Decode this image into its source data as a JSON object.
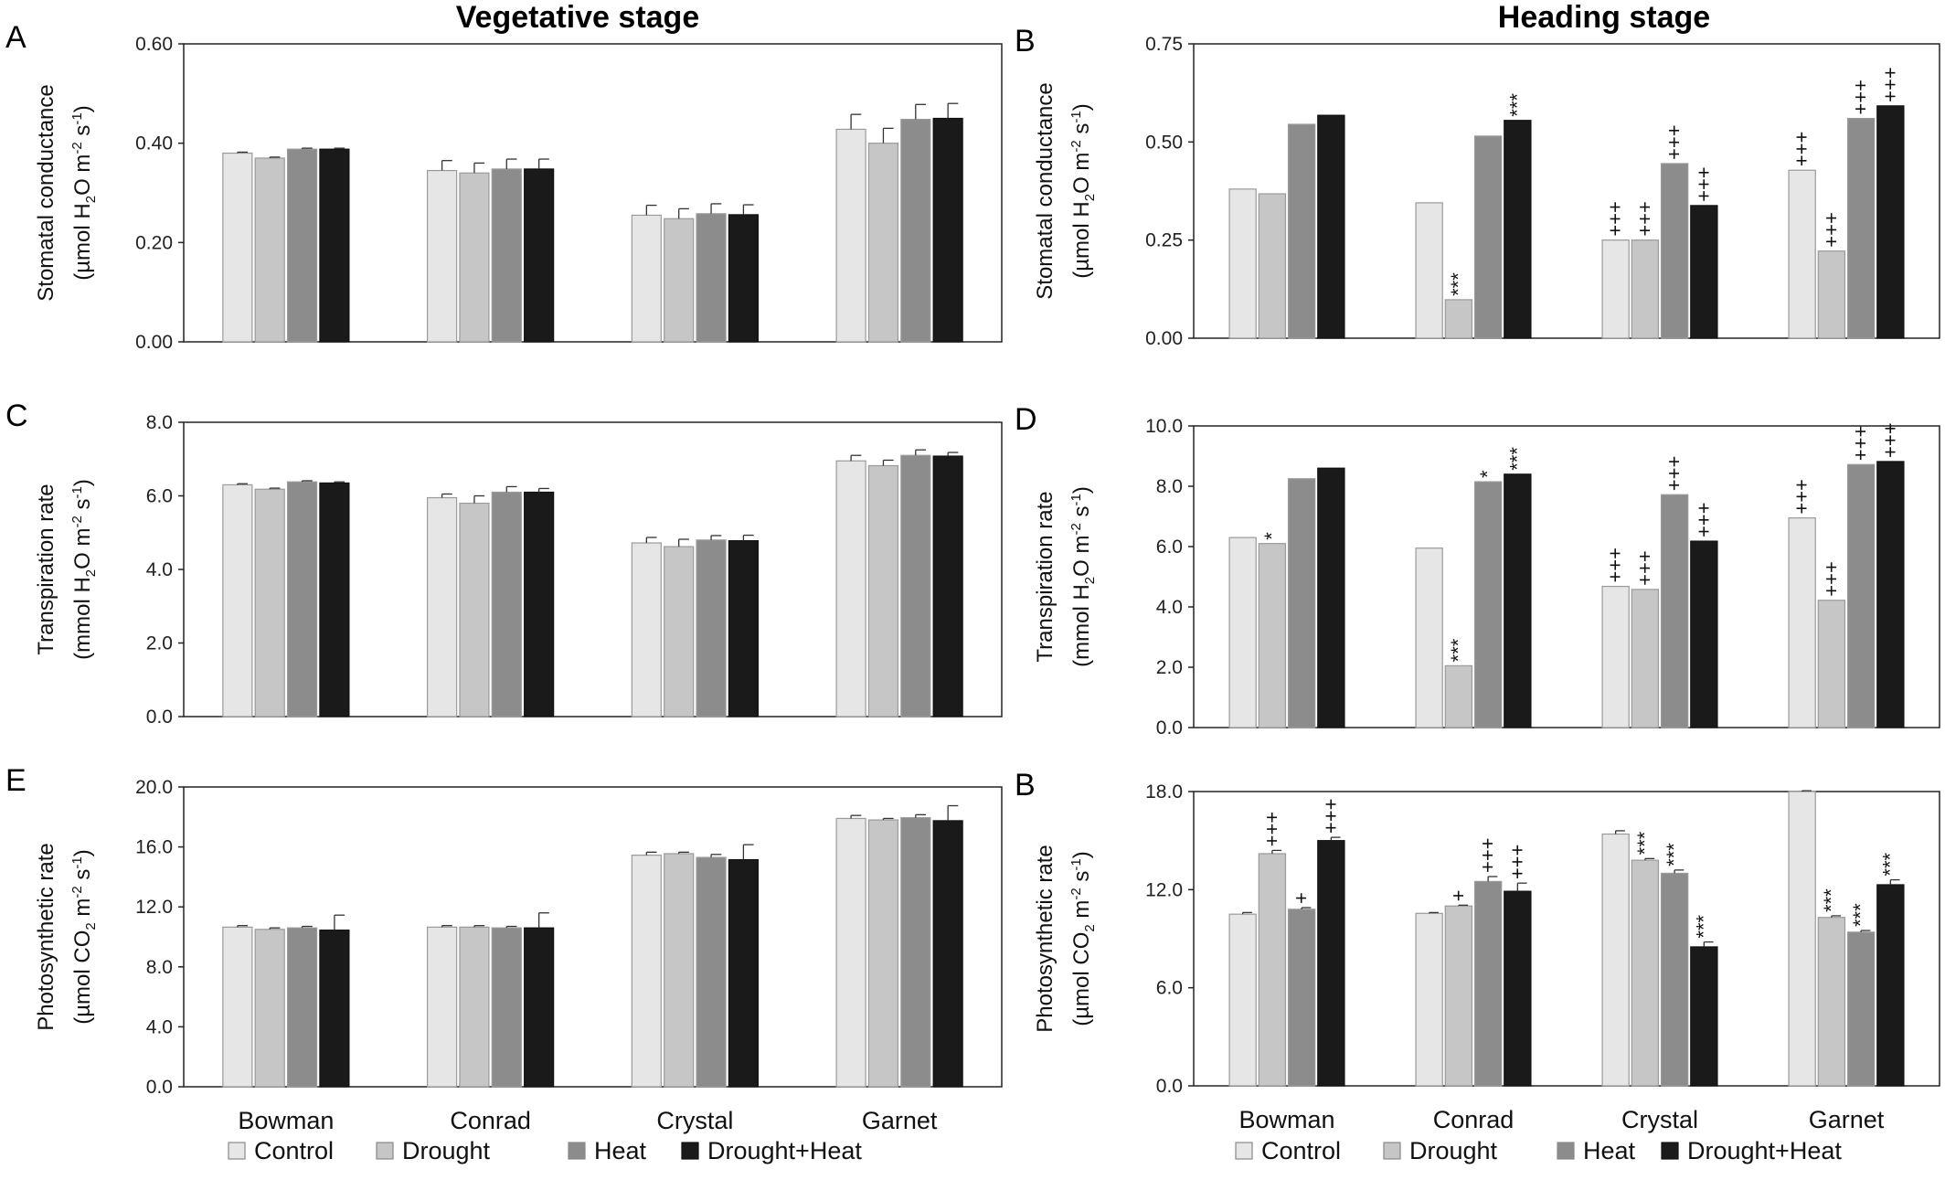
{
  "titles": {
    "left": "Vegetative stage",
    "right": "Heading stage"
  },
  "legend": [
    {
      "label": "Control",
      "color": "#e6e6e6"
    },
    {
      "label": "Drought",
      "color": "#c6c6c6"
    },
    {
      "label": "Heat",
      "color": "#8c8c8c"
    },
    {
      "label": "Drought+Heat",
      "color": "#1a1a1a"
    }
  ],
  "chart_data": [
    {
      "panel": "A",
      "type": "bar",
      "categories": [
        "Bowman",
        "Conrad",
        "Crystal",
        "Garnet"
      ],
      "ylabel_line1": "Stomatal conductance",
      "ylabel_line2": [
        "(µmol H",
        "2",
        "O m",
        "-2",
        " s",
        "-1",
        ")"
      ],
      "ylim": [
        0,
        0.6
      ],
      "yticks": [
        "0.00",
        "0.20",
        "0.40",
        "0.60"
      ],
      "series": [
        {
          "name": "Control",
          "values": [
            0.38,
            0.345,
            0.255,
            0.428
          ],
          "err": [
            0.002,
            0.02,
            0.02,
            0.03
          ]
        },
        {
          "name": "Drought",
          "values": [
            0.37,
            0.34,
            0.248,
            0.4
          ],
          "err": [
            0.002,
            0.02,
            0.02,
            0.03
          ]
        },
        {
          "name": "Heat",
          "values": [
            0.388,
            0.348,
            0.258,
            0.448
          ],
          "err": [
            0.002,
            0.02,
            0.02,
            0.03
          ]
        },
        {
          "name": "Drought+Heat",
          "values": [
            0.388,
            0.348,
            0.256,
            0.45
          ],
          "err": [
            0.002,
            0.02,
            0.02,
            0.03
          ]
        }
      ],
      "sig": [
        [
          "",
          "",
          "",
          ""
        ],
        [
          "",
          "",
          "",
          ""
        ],
        [
          "",
          "",
          "",
          ""
        ],
        [
          "",
          "",
          "",
          ""
        ]
      ]
    },
    {
      "panel": "B",
      "type": "bar",
      "categories": [
        "Bowman",
        "Conrad",
        "Crystal",
        "Garnet"
      ],
      "ylabel_line1": "Stomatal conductance",
      "ylabel_line2": [
        "(µmol H",
        "2",
        "O m",
        "-2",
        " s",
        "-1",
        ")"
      ],
      "ylim": [
        0,
        0.75
      ],
      "yticks": [
        "0.00",
        "0.25",
        "0.50",
        "0.75"
      ],
      "series": [
        {
          "name": "Control",
          "values": [
            0.38,
            0.345,
            0.25,
            0.428
          ],
          "err": [
            0,
            0,
            0,
            0
          ]
        },
        {
          "name": "Drought",
          "values": [
            0.368,
            0.098,
            0.25,
            0.222
          ],
          "err": [
            0,
            0,
            0,
            0
          ]
        },
        {
          "name": "Heat",
          "values": [
            0.545,
            0.515,
            0.445,
            0.56
          ],
          "err": [
            0,
            0,
            0,
            0
          ]
        },
        {
          "name": "Drought+Heat",
          "values": [
            0.568,
            0.555,
            0.338,
            0.592
          ],
          "err": [
            0,
            0,
            0,
            0
          ]
        }
      ],
      "sig": [
        [
          "",
          "",
          "+++",
          "+++"
        ],
        [
          "",
          "***",
          "+++",
          "+++"
        ],
        [
          "",
          "",
          "+++",
          "+++"
        ],
        [
          "",
          "***",
          "+++",
          "+++"
        ]
      ]
    },
    {
      "panel": "C",
      "type": "bar",
      "categories": [
        "Bowman",
        "Conrad",
        "Crystal",
        "Garnet"
      ],
      "ylabel_line1": "Transpiration rate",
      "ylabel_line2": [
        "(mmol H",
        "2",
        "O m",
        "-2",
        " s",
        "-1",
        ")"
      ],
      "ylim": [
        0,
        8
      ],
      "yticks": [
        "0.0",
        "2.0",
        "4.0",
        "6.0",
        "8.0"
      ],
      "series": [
        {
          "name": "Control",
          "values": [
            6.3,
            5.95,
            4.72,
            6.95
          ],
          "err": [
            0.03,
            0.1,
            0.15,
            0.15
          ]
        },
        {
          "name": "Drought",
          "values": [
            6.18,
            5.8,
            4.62,
            6.82
          ],
          "err": [
            0.03,
            0.2,
            0.2,
            0.15
          ]
        },
        {
          "name": "Heat",
          "values": [
            6.38,
            6.1,
            4.8,
            7.1
          ],
          "err": [
            0.03,
            0.15,
            0.12,
            0.15
          ]
        },
        {
          "name": "Drought+Heat",
          "values": [
            6.35,
            6.1,
            4.78,
            7.08
          ],
          "err": [
            0.03,
            0.1,
            0.15,
            0.1
          ]
        }
      ],
      "sig": [
        [
          "",
          "",
          "",
          ""
        ],
        [
          "",
          "",
          "",
          ""
        ],
        [
          "",
          "",
          "",
          ""
        ],
        [
          "",
          "",
          "",
          ""
        ]
      ]
    },
    {
      "panel": "D",
      "type": "bar",
      "categories": [
        "Bowman",
        "Conrad",
        "Crystal",
        "Garnet"
      ],
      "ylabel_line1": "Transpiration rate",
      "ylabel_line2": [
        "(mmol H",
        "2",
        "O m",
        "-2",
        " s",
        "-1",
        ")"
      ],
      "ylim": [
        0,
        10
      ],
      "yticks": [
        "0.0",
        "2.0",
        "4.0",
        "6.0",
        "8.0",
        "10.0"
      ],
      "series": [
        {
          "name": "Control",
          "values": [
            6.3,
            5.95,
            4.68,
            6.95
          ],
          "err": [
            0,
            0,
            0,
            0
          ]
        },
        {
          "name": "Drought",
          "values": [
            6.1,
            2.05,
            4.58,
            4.22
          ],
          "err": [
            0,
            0,
            0,
            0
          ]
        },
        {
          "name": "Heat",
          "values": [
            8.25,
            8.15,
            7.72,
            8.72
          ],
          "err": [
            0,
            0,
            0,
            0
          ]
        },
        {
          "name": "Drought+Heat",
          "values": [
            8.6,
            8.4,
            6.18,
            8.82
          ],
          "err": [
            0,
            0,
            0,
            0
          ]
        }
      ],
      "sig": [
        [
          "",
          "",
          "+++",
          "+++"
        ],
        [
          "*",
          "***",
          "+++",
          "+++"
        ],
        [
          "",
          "*",
          "+++",
          "+++"
        ],
        [
          "",
          "***",
          "+++",
          "+++"
        ]
      ]
    },
    {
      "panel": "E",
      "type": "bar",
      "categories": [
        "Bowman",
        "Conrad",
        "Crystal",
        "Garnet"
      ],
      "ylabel_line1": "Photosynthetic rate",
      "ylabel_line2": [
        "(µmol CO",
        "2",
        " m",
        "-2",
        " s",
        "-1",
        ")"
      ],
      "ylim": [
        0,
        20
      ],
      "yticks": [
        "0.0",
        "4.0",
        "8.0",
        "12.0",
        "16.0",
        "20.0"
      ],
      "series": [
        {
          "name": "Control",
          "values": [
            10.65,
            10.65,
            15.45,
            17.9
          ],
          "err": [
            0.1,
            0.1,
            0.2,
            0.2
          ]
        },
        {
          "name": "Drought",
          "values": [
            10.5,
            10.65,
            15.55,
            17.8
          ],
          "err": [
            0.1,
            0.1,
            0.1,
            0.1
          ]
        },
        {
          "name": "Heat",
          "values": [
            10.6,
            10.6,
            15.3,
            17.95
          ],
          "err": [
            0.1,
            0.1,
            0.2,
            0.2
          ]
        },
        {
          "name": "Drought+Heat",
          "values": [
            10.45,
            10.6,
            15.15,
            17.75
          ],
          "err": [
            1.0,
            1.0,
            1.0,
            1.0
          ]
        }
      ],
      "sig": [
        [
          "",
          "",
          "",
          ""
        ],
        [
          "",
          "",
          "",
          ""
        ],
        [
          "",
          "",
          "",
          ""
        ],
        [
          "",
          "",
          "",
          ""
        ]
      ]
    },
    {
      "panel": "B",
      "type": "bar",
      "categories": [
        "Bowman",
        "Conrad",
        "Crystal",
        "Garnet"
      ],
      "ylabel_line1": "Photosynthetic rate",
      "ylabel_line2": [
        "(µmol CO",
        "2",
        " m",
        "-2",
        " s",
        "-1",
        ")"
      ],
      "ylim": [
        0,
        18
      ],
      "yticks": [
        "0.0",
        "6.0",
        "12.0",
        "18.0"
      ],
      "series": [
        {
          "name": "Control",
          "values": [
            10.5,
            10.55,
            15.4,
            18.0
          ],
          "err": [
            0.1,
            0.05,
            0.2,
            0.05
          ]
        },
        {
          "name": "Drought",
          "values": [
            14.2,
            11.0,
            13.8,
            10.3
          ],
          "err": [
            0.2,
            0.05,
            0.1,
            0.1
          ]
        },
        {
          "name": "Heat",
          "values": [
            10.8,
            12.5,
            13.0,
            9.4
          ],
          "err": [
            0.1,
            0.3,
            0.2,
            0.1
          ]
        },
        {
          "name": "Drought+Heat",
          "values": [
            15.0,
            11.9,
            8.5,
            12.3
          ],
          "err": [
            0.2,
            0.5,
            0.3,
            0.3
          ]
        }
      ],
      "sig": [
        [
          "",
          "",
          "",
          ""
        ],
        [
          "+++",
          "+",
          "***",
          "***"
        ],
        [
          "+",
          "+++",
          "***",
          "***"
        ],
        [
          "+++",
          "+++",
          "***",
          "***"
        ]
      ]
    }
  ]
}
